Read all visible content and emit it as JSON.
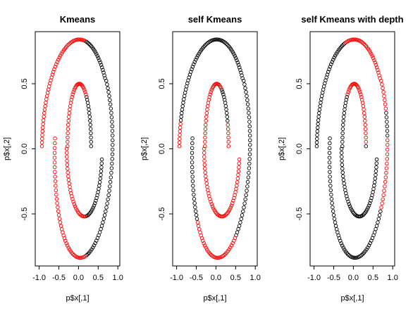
{
  "colors": {
    "cluster_a": "#ff0000",
    "cluster_b": "#000000",
    "frame": "#000000"
  },
  "chart_data": [
    {
      "type": "scatter",
      "title": "Kmeans",
      "xlabel": "p$x[,1]",
      "ylabel": "p$x[,2]",
      "xlim": [
        -1.05,
        1.05
      ],
      "ylim": [
        -0.9,
        0.9
      ],
      "xticks": [
        "-1.0",
        "-0.5",
        "0.0",
        "0.5",
        "1.0"
      ],
      "yticks": [
        "-0.5",
        "0.0",
        "0.5"
      ],
      "marker": "open-circle",
      "series": [
        {
          "color": "#ff0000",
          "description_points": "outer spiral from x≈-1.0,y≈0.05 up over top (0.0,0.85) to x≈0.5,y≈0.6; inner curve left half from (0.1,0.5) down to (0.3,0.1); inner hook (-0.3,0.0)…(-0.3,-0.35)"
        },
        {
          "color": "#000000",
          "description_points": "outer spiral right side down to bottom (0.1,-0.85); inner arc bottom; right tail to (1.0,-0.05)"
        }
      ],
      "x": [],
      "y": []
    },
    {
      "type": "scatter",
      "title": "self Kmeans",
      "xlabel": "p$x[,1]",
      "ylabel": "p$x[,2]",
      "xlim": [
        -1.05,
        1.05
      ],
      "ylim": [
        -0.9,
        0.9
      ],
      "xticks": [
        "-1.0",
        "-0.5",
        "0.0",
        "0.5",
        "1.0"
      ],
      "yticks": [
        "-0.5",
        "0.0",
        "0.5"
      ],
      "marker": "open-circle",
      "series": [
        {
          "color": "#ff0000"
        },
        {
          "color": "#000000"
        }
      ]
    },
    {
      "type": "scatter",
      "title": "self Kmeans with depth",
      "xlabel": "p$x[,1]",
      "ylabel": "p$x[,2]",
      "xlim": [
        -1.05,
        1.05
      ],
      "ylim": [
        -0.9,
        0.9
      ],
      "xticks": [
        "-1.0",
        "-0.5",
        "0.0",
        "0.5",
        "1.0"
      ],
      "yticks": [
        "-0.5",
        "0.0",
        "0.5"
      ],
      "marker": "open-circle",
      "series": [
        {
          "color": "#ff0000"
        },
        {
          "color": "#000000"
        }
      ]
    }
  ]
}
